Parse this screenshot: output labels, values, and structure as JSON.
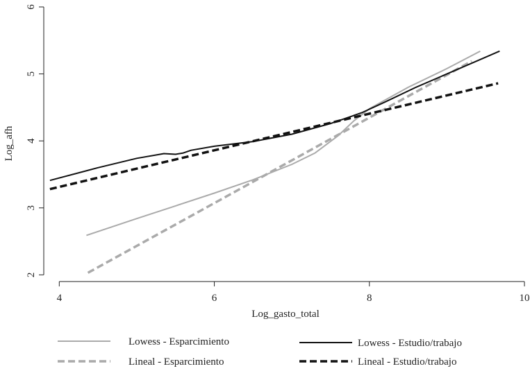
{
  "chart_data": {
    "type": "line",
    "title": "",
    "xlabel": "Log_gasto_total",
    "ylabel": "Log_afh",
    "xlim": [
      3.8,
      10.0
    ],
    "ylim": [
      1.9,
      6.0
    ],
    "x_ticks": [
      4,
      6,
      8,
      10
    ],
    "x_tick_labels": [
      "4",
      "6",
      "8",
      "10"
    ],
    "y_ticks": [
      2,
      3,
      4,
      5,
      6
    ],
    "y_tick_labels": [
      "2",
      "3",
      "4",
      "5",
      "6"
    ],
    "grid": false,
    "legend_position": "bottom",
    "series": [
      {
        "name": "Lowess - Esparcimiento",
        "color": "#aaaaaa",
        "dash": "solid",
        "x": [
          4.35,
          5.0,
          5.5,
          6.0,
          6.5,
          7.0,
          7.3,
          7.6,
          7.8,
          8.0,
          8.5,
          9.0,
          9.43
        ],
        "y": [
          2.59,
          2.84,
          3.03,
          3.22,
          3.42,
          3.65,
          3.82,
          4.08,
          4.3,
          4.48,
          4.8,
          5.08,
          5.34
        ]
      },
      {
        "name": "Lineal - Esparcimiento",
        "color": "#aaaaaa",
        "dash": "dashed",
        "x": [
          4.37,
          9.32
        ],
        "y": [
          2.03,
          5.19
        ]
      },
      {
        "name": "Lowess - Estudio/trabajo",
        "color": "#111111",
        "dash": "solid",
        "x": [
          3.88,
          4.5,
          5.0,
          5.3,
          5.35,
          5.5,
          5.6,
          5.7,
          6.0,
          6.5,
          7.0,
          7.5,
          7.9,
          8.2,
          8.6,
          9.0,
          9.5,
          9.68
        ],
        "y": [
          3.41,
          3.6,
          3.74,
          3.8,
          3.81,
          3.8,
          3.82,
          3.86,
          3.92,
          3.99,
          4.1,
          4.26,
          4.42,
          4.58,
          4.8,
          5.0,
          5.25,
          5.34
        ]
      },
      {
        "name": "Lineal - Estudio/trabajo",
        "color": "#111111",
        "dash": "dashed",
        "x": [
          3.88,
          9.66
        ],
        "y": [
          3.28,
          4.86
        ]
      }
    ]
  }
}
